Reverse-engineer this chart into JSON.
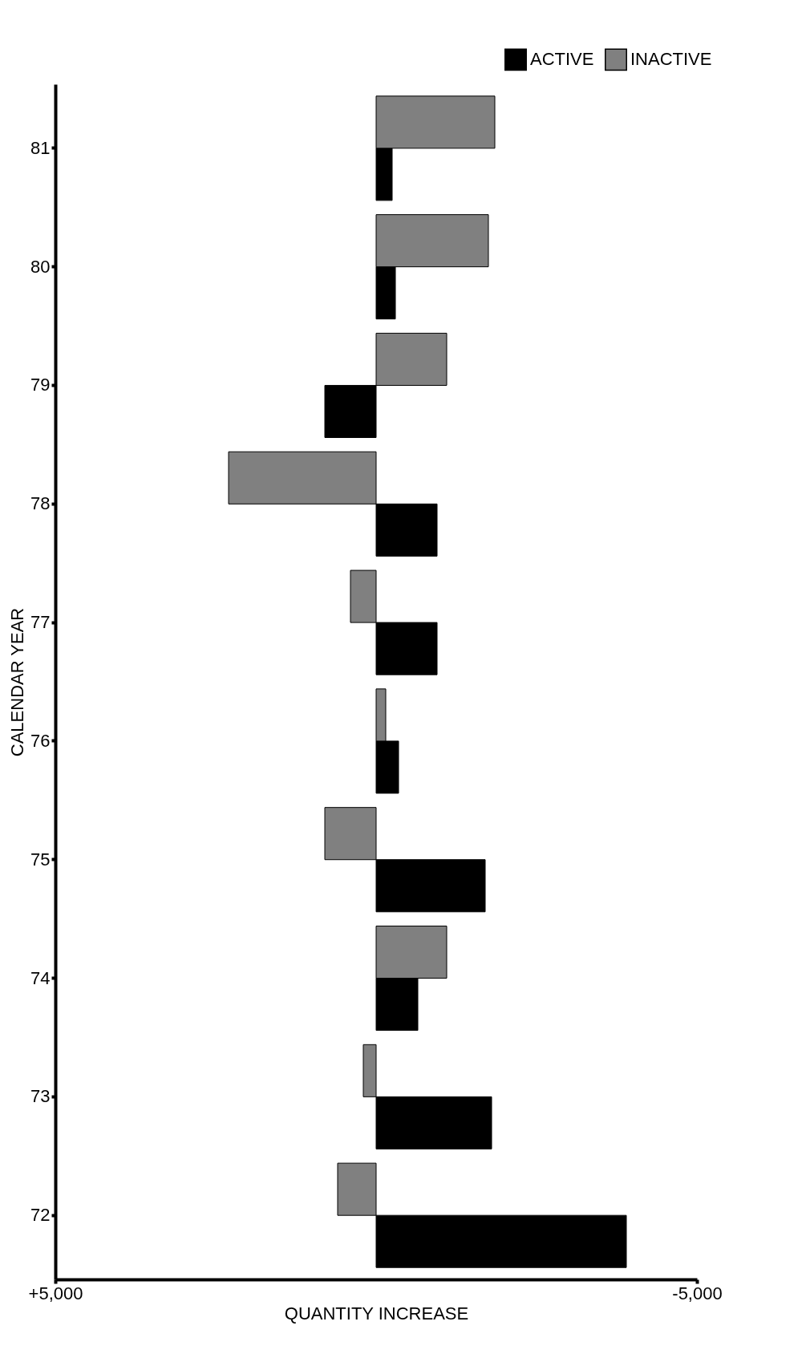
{
  "chart_data": {
    "type": "bar",
    "orientation": "horizontal",
    "categories": [
      "81",
      "80",
      "79",
      "78",
      "77",
      "76",
      "75",
      "74",
      "73",
      "72"
    ],
    "series": [
      {
        "name": "ACTIVE",
        "color": "#000000",
        "values": [
          -250,
          -300,
          800,
          -950,
          -950,
          -350,
          -1700,
          -650,
          -1800,
          -3900
        ]
      },
      {
        "name": "INACTIVE",
        "color": "#808080",
        "values": [
          -1850,
          -1750,
          -1100,
          2300,
          400,
          -150,
          800,
          -1100,
          200,
          600
        ]
      }
    ],
    "xlim": [
      5000,
      -5000
    ],
    "xticks": [
      {
        "value": 5000,
        "label": "+5,000"
      },
      {
        "value": -5000,
        "label": "-5,000"
      }
    ],
    "xlabel": "QUANTITY INCREASE",
    "ylabel": "CALENDAR YEAR",
    "legend": "top right",
    "grid": false
  }
}
